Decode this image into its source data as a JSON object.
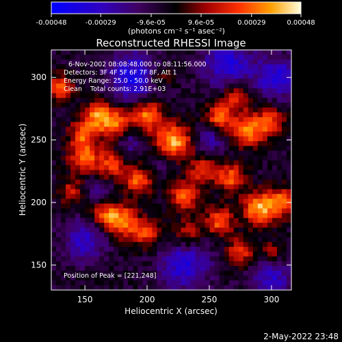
{
  "chart_data": {
    "type": "heatmap",
    "title": "Reconstructed RHESSI Image",
    "xlabel": "Heliocentric X (arcsec)",
    "ylabel": "Heliocentric Y (arcsec)",
    "xlim": [
      123,
      316
    ],
    "ylim": [
      130,
      322
    ],
    "xticks": [
      150,
      200,
      250,
      300
    ],
    "yticks": [
      150,
      200,
      250,
      300
    ],
    "colorbar": {
      "colormap": "blue-purple-black-red-orange-yellow-white",
      "range": [
        -0.00048,
        0.00048
      ],
      "tick_values": [
        -0.00048,
        -0.00029,
        -9.6e-05,
        9.6e-05,
        0.00029,
        0.00048
      ],
      "tick_labels": [
        "-0.00048",
        "-0.00029",
        "-9.6e-05",
        "9.6e-05",
        "0.00029",
        "0.00048"
      ],
      "unit_label": "(photons cm⁻² s⁻¹ asec⁻²)"
    },
    "annotations": [
      "6-Nov-2002 08:08:48.000 to 08:11:56.000",
      "Detectors: 3F 4F 5F 6F 7F 8F, Att 1",
      "Energy Range: 25.0 - 50.0 keV",
      "Clean    Total counts: 2.91E+03",
      "Position of Peak = [221,248]"
    ],
    "peak": [
      221,
      248
    ],
    "emission_blobs": [
      {
        "x": 221,
        "y": 248,
        "amp": 1.0,
        "sigma": 10
      },
      {
        "x": 200,
        "y": 270,
        "amp": 0.8,
        "sigma": 9
      },
      {
        "x": 175,
        "y": 262,
        "amp": 0.8,
        "sigma": 9
      },
      {
        "x": 160,
        "y": 270,
        "amp": 0.7,
        "sigma": 8
      },
      {
        "x": 148,
        "y": 255,
        "amp": 0.6,
        "sigma": 8
      },
      {
        "x": 150,
        "y": 236,
        "amp": 0.7,
        "sigma": 9
      },
      {
        "x": 172,
        "y": 230,
        "amp": 0.6,
        "sigma": 8
      },
      {
        "x": 193,
        "y": 217,
        "amp": 0.7,
        "sigma": 8
      },
      {
        "x": 180,
        "y": 185,
        "amp": 0.8,
        "sigma": 9
      },
      {
        "x": 200,
        "y": 175,
        "amp": 0.6,
        "sigma": 8
      },
      {
        "x": 165,
        "y": 190,
        "amp": 0.6,
        "sigma": 8
      },
      {
        "x": 230,
        "y": 205,
        "amp": 0.7,
        "sigma": 8
      },
      {
        "x": 245,
        "y": 225,
        "amp": 0.6,
        "sigma": 8
      },
      {
        "x": 258,
        "y": 268,
        "amp": 0.7,
        "sigma": 8
      },
      {
        "x": 272,
        "y": 285,
        "amp": 0.6,
        "sigma": 8
      },
      {
        "x": 282,
        "y": 258,
        "amp": 0.8,
        "sigma": 9
      },
      {
        "x": 300,
        "y": 265,
        "amp": 0.6,
        "sigma": 8
      },
      {
        "x": 268,
        "y": 220,
        "amp": 0.7,
        "sigma": 8
      },
      {
        "x": 290,
        "y": 195,
        "amp": 0.9,
        "sigma": 9
      },
      {
        "x": 308,
        "y": 200,
        "amp": 0.7,
        "sigma": 8
      },
      {
        "x": 258,
        "y": 185,
        "amp": 0.7,
        "sigma": 8
      },
      {
        "x": 275,
        "y": 160,
        "amp": 0.6,
        "sigma": 8
      },
      {
        "x": 232,
        "y": 175,
        "amp": 0.5,
        "sigma": 8
      },
      {
        "x": 130,
        "y": 292,
        "amp": 0.7,
        "sigma": 7
      },
      {
        "x": 140,
        "y": 208,
        "amp": 0.5,
        "sigma": 7
      },
      {
        "x": 210,
        "y": 300,
        "amp": 0.4,
        "sigma": 7
      },
      {
        "x": 300,
        "y": 160,
        "amp": 0.4,
        "sigma": 7
      }
    ],
    "negative_blobs": [
      {
        "x": 190,
        "y": 300,
        "amp": 0.7,
        "sigma": 14
      },
      {
        "x": 265,
        "y": 310,
        "amp": 0.6,
        "sigma": 14
      },
      {
        "x": 150,
        "y": 170,
        "amp": 0.5,
        "sigma": 12
      },
      {
        "x": 230,
        "y": 150,
        "amp": 0.6,
        "sigma": 14
      },
      {
        "x": 300,
        "y": 140,
        "amp": 0.5,
        "sigma": 12
      },
      {
        "x": 305,
        "y": 300,
        "amp": 0.6,
        "sigma": 12
      },
      {
        "x": 215,
        "y": 235,
        "amp": 0.3,
        "sigma": 8
      },
      {
        "x": 185,
        "y": 250,
        "amp": 0.4,
        "sigma": 8
      },
      {
        "x": 160,
        "y": 210,
        "amp": 0.3,
        "sigma": 8
      },
      {
        "x": 250,
        "y": 250,
        "amp": 0.4,
        "sigma": 8
      }
    ]
  },
  "footer": {
    "timestamp": "2-May-2022 23:48"
  }
}
